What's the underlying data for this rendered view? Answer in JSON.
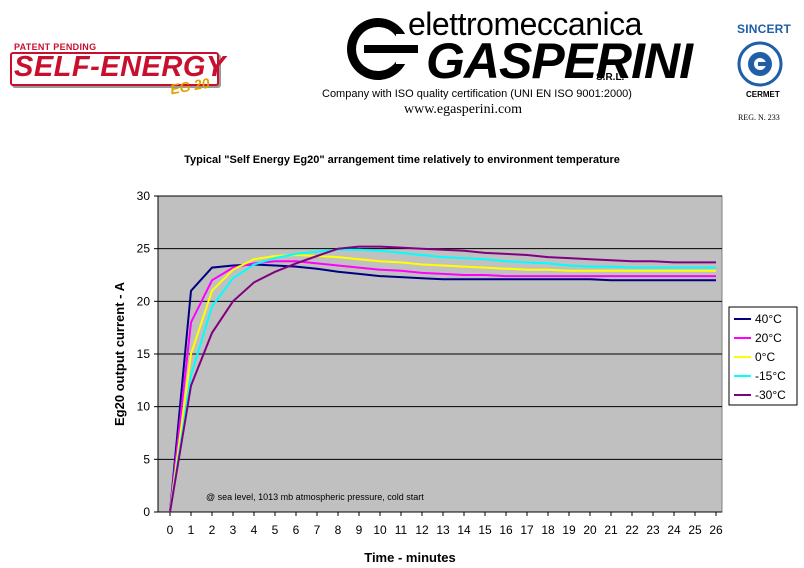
{
  "header": {
    "left_logo": {
      "patent": "PATENT PENDING",
      "name": "SELF-ENERGY",
      "model": "EG 20"
    },
    "brand": {
      "top": "elettromeccanica",
      "main": "GASPERINI",
      "suffix": "S.R.L."
    },
    "iso_text": "Company with ISO quality certification (UNI EN ISO 9001:2000)",
    "website": "www.egasperini.com",
    "cert": {
      "sincert": "SINCERT",
      "cermet": "CERMET",
      "reg": "REG. N. 233"
    }
  },
  "colors": {
    "plot_bg": "#c0c0c0",
    "series": [
      "#000080",
      "#ff00ff",
      "#ffff00",
      "#00ffff",
      "#800080"
    ]
  },
  "chart_data": {
    "type": "line",
    "title": "Typical \"Self Energy Eg20\" arrangement time relatively to environment temperature",
    "xlabel": "Time - minutes",
    "ylabel": "Eg20 output current - A",
    "xlim": [
      0,
      26
    ],
    "ylim": [
      0,
      30
    ],
    "xticks": [
      0,
      1,
      2,
      3,
      4,
      5,
      6,
      7,
      8,
      9,
      10,
      11,
      12,
      13,
      14,
      15,
      16,
      17,
      18,
      19,
      20,
      21,
      22,
      23,
      24,
      25,
      26
    ],
    "yticks": [
      0,
      5,
      10,
      15,
      20,
      25,
      30
    ],
    "grid": "horizontal",
    "legend": "right",
    "annotation": "@ sea level, 1013 mb atmospheric pressure, cold start",
    "x": [
      0,
      1,
      2,
      3,
      4,
      5,
      6,
      7,
      8,
      9,
      10,
      11,
      12,
      13,
      14,
      15,
      16,
      17,
      18,
      19,
      20,
      21,
      22,
      23,
      24,
      25,
      26
    ],
    "series": [
      {
        "name": "40°C",
        "values": [
          0,
          21,
          23.2,
          23.4,
          23.5,
          23.4,
          23.3,
          23.1,
          22.8,
          22.6,
          22.4,
          22.3,
          22.2,
          22.1,
          22.1,
          22.1,
          22.1,
          22.1,
          22.1,
          22.1,
          22.1,
          22.0,
          22.0,
          22.0,
          22.0,
          22.0,
          22.0
        ]
      },
      {
        "name": "20°C",
        "values": [
          0,
          18,
          22,
          23.2,
          23.6,
          23.8,
          23.8,
          23.6,
          23.4,
          23.2,
          23.0,
          22.9,
          22.7,
          22.6,
          22.5,
          22.5,
          22.4,
          22.4,
          22.4,
          22.4,
          22.4,
          22.4,
          22.4,
          22.4,
          22.4,
          22.4,
          22.4
        ]
      },
      {
        "name": "0°C",
        "values": [
          0,
          15,
          21,
          23,
          24,
          24.3,
          24.4,
          24.3,
          24.2,
          24.0,
          23.8,
          23.7,
          23.5,
          23.4,
          23.3,
          23.2,
          23.1,
          23.0,
          23.0,
          22.9,
          22.9,
          22.9,
          22.9,
          22.9,
          22.9,
          22.9,
          22.9
        ]
      },
      {
        "name": "-15°C",
        "values": [
          0,
          13,
          19.5,
          22.2,
          23.5,
          24.1,
          24.5,
          24.7,
          24.9,
          24.9,
          24.8,
          24.6,
          24.4,
          24.2,
          24.1,
          24.0,
          23.8,
          23.7,
          23.6,
          23.4,
          23.3,
          23.3,
          23.2,
          23.2,
          23.2,
          23.2,
          23.2
        ]
      },
      {
        "name": "-30°C",
        "values": [
          0,
          12,
          17,
          20,
          21.8,
          22.8,
          23.6,
          24.3,
          25,
          25.2,
          25.2,
          25.1,
          25.0,
          24.9,
          24.8,
          24.6,
          24.5,
          24.4,
          24.2,
          24.1,
          24.0,
          23.9,
          23.8,
          23.8,
          23.7,
          23.7,
          23.7
        ]
      }
    ]
  }
}
